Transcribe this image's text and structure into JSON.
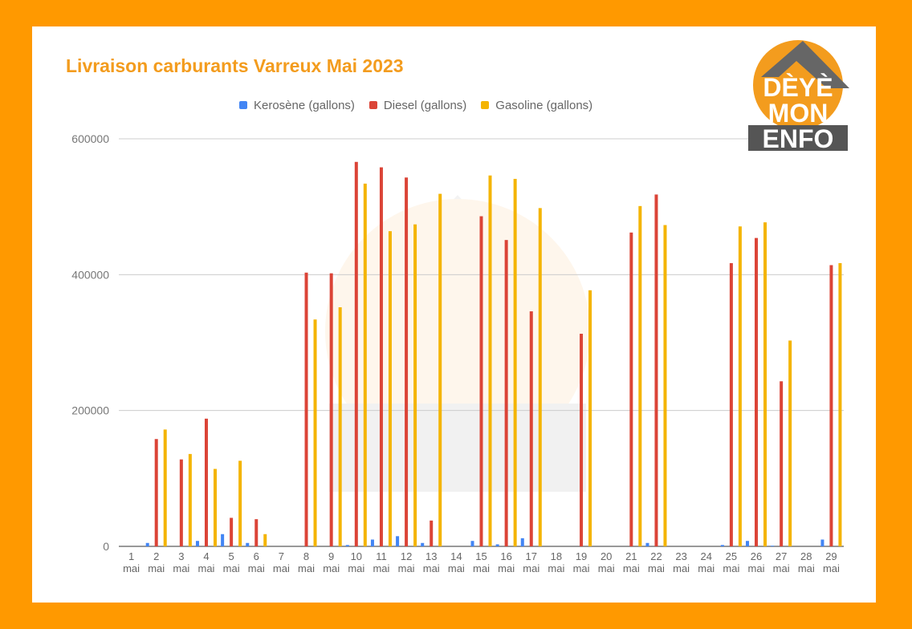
{
  "title": "Livraison carburants Varreux Mai 2023",
  "logo": {
    "line1": "DÈYÈ",
    "line2": "MON",
    "line3": "ENFO"
  },
  "colors": {
    "kerosene": "#4285f4",
    "diesel": "#db4437",
    "gasoline": "#f4b400",
    "frame": "#ff9900"
  },
  "chart_data": {
    "type": "bar",
    "title": "Livraison carburants Varreux Mai 2023",
    "categories": [
      "1 mai",
      "2 mai",
      "3 mai",
      "4 mai",
      "5 mai",
      "6 mai",
      "7 mai",
      "8 mai",
      "9 mai",
      "10 mai",
      "11 mai",
      "12 mai",
      "13 mai",
      "14 mai",
      "15 mai",
      "16 mai",
      "17 mai",
      "18 mai",
      "19 mai",
      "20 mai",
      "21 mai",
      "22 mai",
      "23 mai",
      "24 mai",
      "25 mai",
      "26 mai",
      "27 mai",
      "28 mai",
      "29 mai"
    ],
    "series": [
      {
        "name": "Kerosène (gallons)",
        "color": "#4285f4",
        "values": [
          0,
          5000,
          0,
          8000,
          18000,
          5000,
          0,
          0,
          0,
          2000,
          10000,
          15000,
          5000,
          0,
          8000,
          3000,
          12000,
          0,
          0,
          0,
          0,
          5000,
          0,
          0,
          2000,
          8000,
          1000,
          0,
          10000
        ]
      },
      {
        "name": "Diesel (gallons)",
        "color": "#db4437",
        "values": [
          0,
          158000,
          128000,
          188000,
          42000,
          40000,
          0,
          403000,
          402000,
          566000,
          558000,
          543000,
          38000,
          0,
          486000,
          451000,
          346000,
          0,
          313000,
          0,
          462000,
          518000,
          0,
          0,
          417000,
          454000,
          243000,
          0,
          414000
        ]
      },
      {
        "name": "Gasoline (gallons)",
        "color": "#f4b400",
        "values": [
          0,
          172000,
          136000,
          114000,
          126000,
          18000,
          0,
          334000,
          352000,
          534000,
          464000,
          474000,
          519000,
          0,
          546000,
          541000,
          498000,
          0,
          377000,
          0,
          501000,
          473000,
          0,
          0,
          471000,
          477000,
          303000,
          0,
          417000
        ]
      }
    ],
    "yticks": [
      "0",
      "200000",
      "400000",
      "600000"
    ],
    "ylim": [
      0,
      600000
    ],
    "grid": true,
    "legend": "top"
  }
}
